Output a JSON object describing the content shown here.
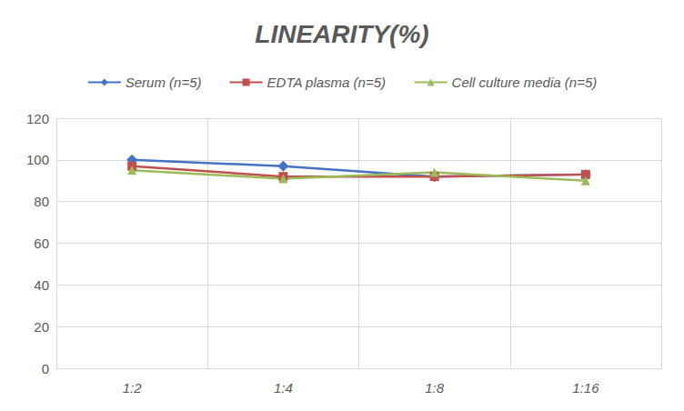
{
  "chart_data": {
    "type": "line",
    "title": "LINEARITY(%)",
    "categories": [
      "1:2",
      "1:4",
      "1:8",
      "1:16"
    ],
    "series": [
      {
        "name": "Serum (n=5)",
        "color": "#4472c4",
        "marker": "diamond",
        "values": [
          100,
          97,
          92,
          93
        ]
      },
      {
        "name": "EDTA plasma (n=5)",
        "color": "#c0504d",
        "marker": "square",
        "values": [
          97,
          92,
          92,
          93
        ]
      },
      {
        "name": "Cell culture media (n=5)",
        "color": "#9bbb59",
        "marker": "triangle",
        "values": [
          95,
          91,
          94,
          90
        ]
      }
    ],
    "ylim": [
      0,
      120
    ],
    "yticks": [
      0,
      20,
      40,
      60,
      80,
      100,
      120
    ],
    "grid": true,
    "legend": "top"
  }
}
